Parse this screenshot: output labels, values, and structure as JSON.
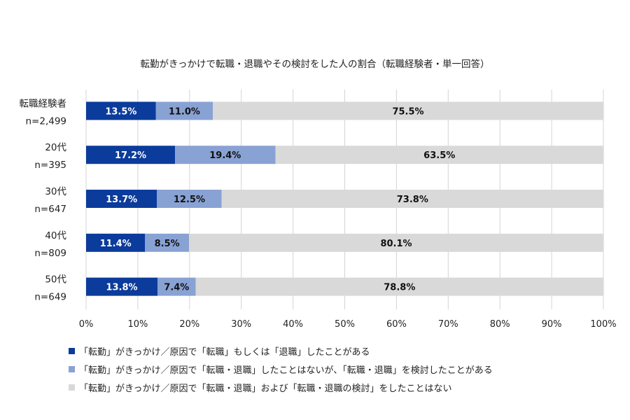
{
  "chart_data": {
    "type": "bar",
    "orientation": "horizontal",
    "stacked": true,
    "title": "転勤がきっかけで転職・退職やその検討をした人の割合（転職経験者・単一回答）",
    "categories": [
      {
        "name": "転職経験者",
        "n": "n=2,499"
      },
      {
        "name": "20代",
        "n": "n=395"
      },
      {
        "name": "30代",
        "n": "n=647"
      },
      {
        "name": "40代",
        "n": "n=809"
      },
      {
        "name": "50代",
        "n": "n=649"
      }
    ],
    "series": [
      {
        "name": "「転勤」がきっかけ／原因で「転職」もしくは「退職」したことがある",
        "color": "#0b3b9b",
        "label_color": "#ffffff",
        "values": [
          13.5,
          17.2,
          13.7,
          11.4,
          13.8
        ]
      },
      {
        "name": "「転勤」がきっかけ／原因で「転職・退職」したことはないが、「転職・退職」を検討したことがある",
        "color": "#89a2d4",
        "label_color": "#111111",
        "values": [
          11.0,
          19.4,
          12.5,
          8.5,
          7.4
        ]
      },
      {
        "name": "「転勤」がきっかけ／原因で「転職・退職」および「転職・退職の検討」をしたことはない",
        "color": "#d9d9d9",
        "label_color": "#111111",
        "values": [
          75.5,
          63.5,
          73.8,
          80.1,
          78.8
        ]
      }
    ],
    "xlim": [
      0,
      100
    ],
    "xticks": [
      "0%",
      "10%",
      "20%",
      "30%",
      "40%",
      "50%",
      "60%",
      "70%",
      "80%",
      "90%",
      "100%"
    ],
    "grid": true,
    "legend_position": "bottom"
  }
}
